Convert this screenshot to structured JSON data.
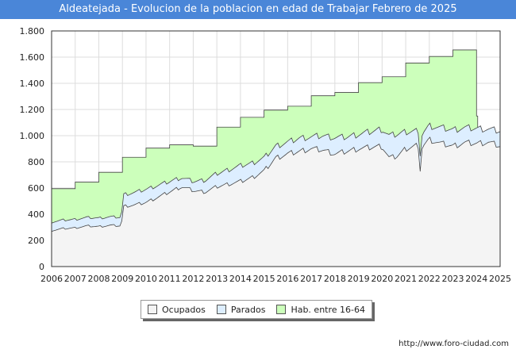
{
  "header": {
    "title": "Aldeatejada - Evolucion de la poblacion en edad de Trabajar Febrero de 2025"
  },
  "footer": {
    "source": "http://www.foro-ciudad.com"
  },
  "colors": {
    "hab": "#ccffbb",
    "parados": "#ddeeff",
    "ocupados": "#f4f4f4",
    "line": "#444444",
    "grid": "#dddddd"
  },
  "chart_data": {
    "type": "area",
    "title": "Aldeatejada - Evolucion de la poblacion en edad de Trabajar Febrero de 2025",
    "xlim": [
      2006,
      2025
    ],
    "ylim": [
      0,
      1800
    ],
    "x_ticks": [
      "2006",
      "2007",
      "2008",
      "2009",
      "2010",
      "2011",
      "2012",
      "2013",
      "2014",
      "2015",
      "2016",
      "2017",
      "2018",
      "2019",
      "2020",
      "2021",
      "2022",
      "2023",
      "2024",
      "2025"
    ],
    "y_ticks": [
      {
        "value": 0,
        "label": "0"
      },
      {
        "value": 200,
        "label": "200"
      },
      {
        "value": 400,
        "label": "400"
      },
      {
        "value": 600,
        "label": "600"
      },
      {
        "value": 800,
        "label": "800"
      },
      {
        "value": 1000,
        "label": "1.000"
      },
      {
        "value": 1200,
        "label": "1.200"
      },
      {
        "value": 1400,
        "label": "1.400"
      },
      {
        "value": 1600,
        "label": "1.600"
      },
      {
        "value": 1800,
        "label": "1.800"
      }
    ],
    "grid": true,
    "legend_position": "bottom",
    "series": [
      {
        "name": "Hab. entre 16-64",
        "key": "hab",
        "x": [
          2006,
          2007,
          2008,
          2009,
          2010,
          2011,
          2012,
          2013,
          2014,
          2015,
          2016,
          2017,
          2018,
          2019,
          2020,
          2021,
          2022,
          2023,
          2024
        ],
        "values": [
          595,
          645,
          720,
          835,
          905,
          930,
          920,
          1065,
          1140,
          1195,
          1225,
          1305,
          1330,
          1405,
          1450,
          1555,
          1605,
          1655,
          1150
        ]
      },
      {
        "name": "Parados",
        "key": "parados",
        "x": [
          2006,
          2006.5,
          2007,
          2007.5,
          2008,
          2008.5,
          2008.95,
          2009.05,
          2009.5,
          2010,
          2010.5,
          2011,
          2011.5,
          2012,
          2012.5,
          2013,
          2013.5,
          2014,
          2014.5,
          2015,
          2015.5,
          2016,
          2016.5,
          2017,
          2017.5,
          2018,
          2018.5,
          2019,
          2019.5,
          2020,
          2020.3,
          2020.6,
          2021,
          2021.5,
          2021.62,
          2021.7,
          2022,
          2022.5,
          2023,
          2023.5,
          2024,
          2024.5,
          2025
        ],
        "values": [
          340,
          355,
          360,
          375,
          370,
          380,
          375,
          550,
          565,
          590,
          620,
          650,
          680,
          650,
          660,
          710,
          740,
          770,
          790,
          830,
          920,
          950,
          980,
          990,
          1000,
          985,
          990,
          1010,
          1030,
          1050,
          1000,
          1010,
          1030,
          1040,
          850,
          1020,
          1075,
          1060,
          1045,
          1060,
          1055,
          1050,
          1035
        ]
      },
      {
        "name": "Ocupados",
        "key": "ocupados",
        "x": [
          2006,
          2006.5,
          2007,
          2007.5,
          2008,
          2008.5,
          2008.95,
          2009.05,
          2009.5,
          2010,
          2010.5,
          2011,
          2011.5,
          2012,
          2012.5,
          2013,
          2013.5,
          2014,
          2014.5,
          2015,
          2015.5,
          2016,
          2016.5,
          2017,
          2017.5,
          2018,
          2018.5,
          2019,
          2019.5,
          2020,
          2020.3,
          2020.6,
          2021,
          2021.5,
          2021.62,
          2021.7,
          2022,
          2022.5,
          2023,
          2023.5,
          2024,
          2024.5,
          2025
        ],
        "values": [
          275,
          290,
          295,
          310,
          305,
          315,
          310,
          460,
          470,
          490,
          530,
          570,
          610,
          580,
          570,
          610,
          630,
          650,
          680,
          730,
          830,
          860,
          880,
          900,
          890,
          860,
          880,
          900,
          910,
          920,
          830,
          840,
          900,
          930,
          730,
          920,
          970,
          940,
          920,
          945,
          940,
          950,
          920
        ]
      }
    ]
  }
}
